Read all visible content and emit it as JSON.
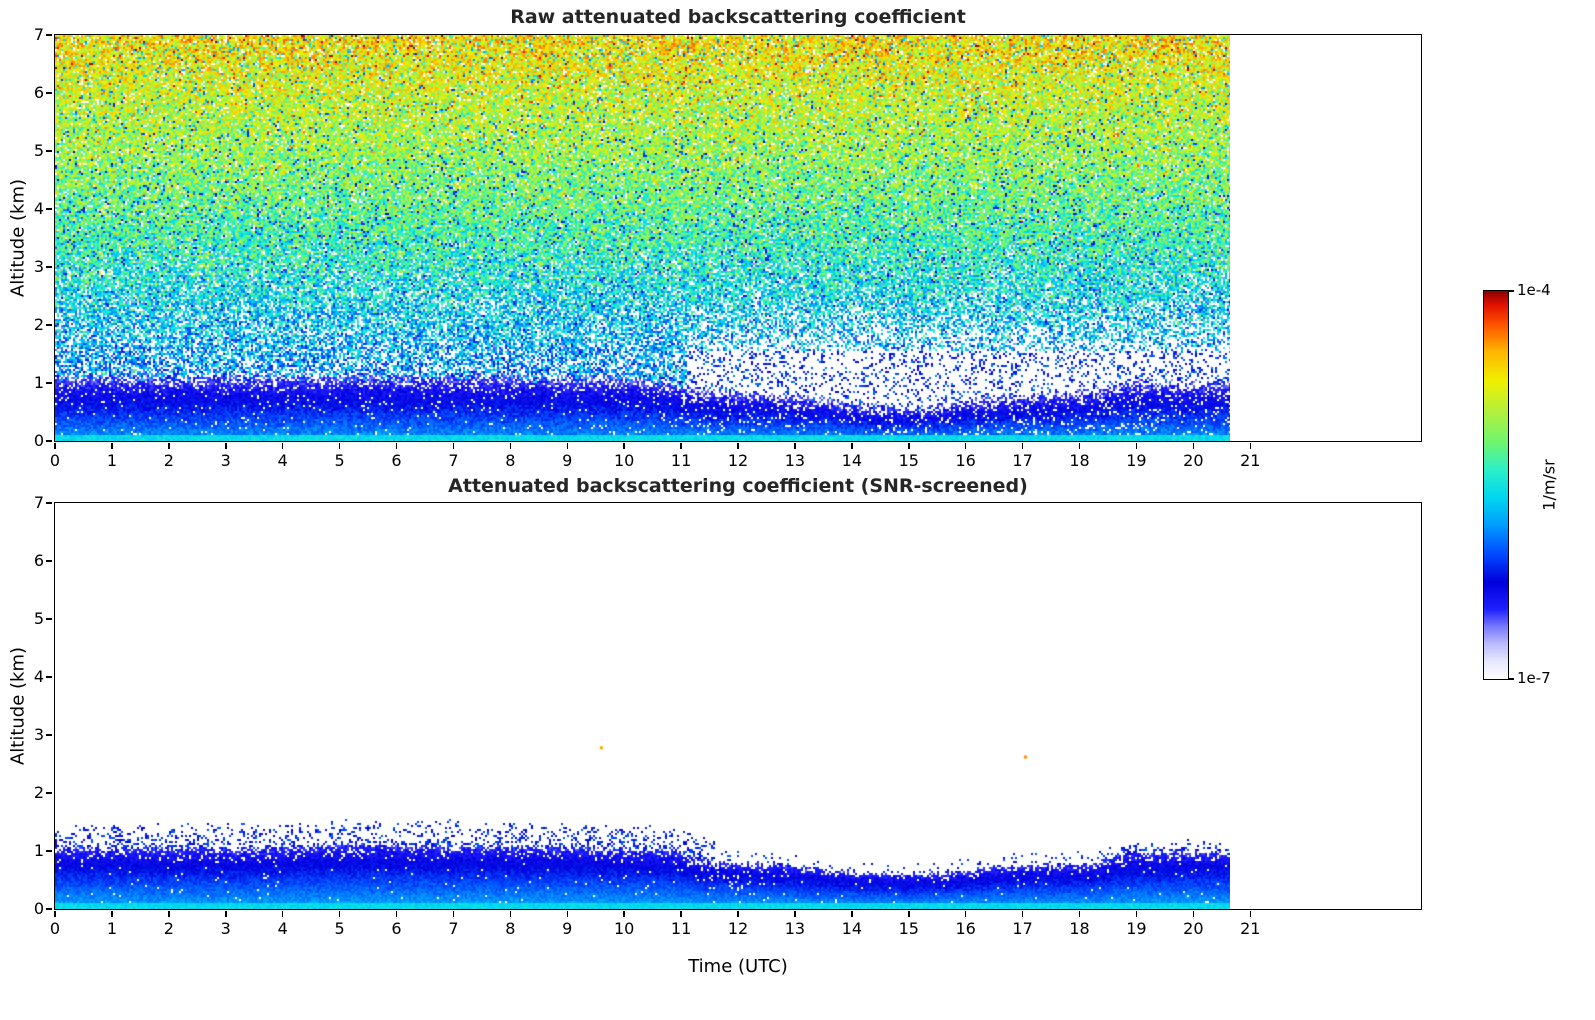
{
  "colorbar": {
    "label": "1/m/sr",
    "max_label": "1e-4",
    "min_label": "1e-7",
    "stops": [
      [
        0.0,
        "#ffffff"
      ],
      [
        0.045,
        "#e8e8ff"
      ],
      [
        0.09,
        "#bcbcff"
      ],
      [
        0.135,
        "#7878ff"
      ],
      [
        0.18,
        "#2020ff"
      ],
      [
        0.25,
        "#0000dc"
      ],
      [
        0.32,
        "#0048ff"
      ],
      [
        0.4,
        "#00a0ff"
      ],
      [
        0.47,
        "#00d8f0"
      ],
      [
        0.54,
        "#2cf0c8"
      ],
      [
        0.61,
        "#6ef66e"
      ],
      [
        0.69,
        "#b4f03c"
      ],
      [
        0.77,
        "#f0f000"
      ],
      [
        0.845,
        "#ffb400"
      ],
      [
        0.915,
        "#ff5000"
      ],
      [
        0.965,
        "#e01000"
      ],
      [
        1.0,
        "#8c0000"
      ]
    ]
  },
  "chart_data": [
    {
      "type": "heatmap",
      "variant": "raw",
      "title": "Raw attenuated backscattering coefficient",
      "xlabel": "",
      "ylabel": "Altitude (km)",
      "xlim": [
        0,
        24
      ],
      "ylim": [
        0,
        7
      ],
      "xticks": [
        0,
        1,
        2,
        3,
        4,
        5,
        6,
        7,
        8,
        9,
        10,
        11,
        12,
        13,
        14,
        15,
        16,
        17,
        18,
        19,
        20,
        21
      ],
      "yticks": [
        0,
        1,
        2,
        3,
        4,
        5,
        6,
        7
      ],
      "time_range_utc": [
        0,
        20.65
      ],
      "colorbar_range": [
        "1e-7",
        "1e-4"
      ],
      "units": "1/m/sr",
      "aerosol_layer_top_km": [
        [
          0,
          1.1
        ],
        [
          3,
          1.08
        ],
        [
          5,
          1.12
        ],
        [
          9,
          1.08
        ],
        [
          10.6,
          1.05
        ],
        [
          11.3,
          0.85
        ],
        [
          12.5,
          0.8
        ],
        [
          13.5,
          0.72
        ],
        [
          14.2,
          0.6
        ],
        [
          15.3,
          0.56
        ],
        [
          16.2,
          0.72
        ],
        [
          17.2,
          0.78
        ],
        [
          18.3,
          0.85
        ],
        [
          18.8,
          1.0
        ],
        [
          20.65,
          1.0
        ]
      ],
      "noise_profile": [
        [
          0.8,
          0.36
        ],
        [
          1.5,
          0.4
        ],
        [
          2.5,
          0.48
        ],
        [
          3.5,
          0.56
        ],
        [
          5,
          0.66
        ],
        [
          6,
          0.72
        ],
        [
          7,
          0.79
        ]
      ],
      "seed": 1337
    },
    {
      "type": "heatmap",
      "variant": "snr_screened",
      "title": "Attenuated backscattering coefficient (SNR-screened)",
      "xlabel": "Time (UTC)",
      "ylabel": "Altitude (km)",
      "xlim": [
        0,
        24
      ],
      "ylim": [
        0,
        7
      ],
      "xticks": [
        0,
        1,
        2,
        3,
        4,
        5,
        6,
        7,
        8,
        9,
        10,
        11,
        12,
        13,
        14,
        15,
        16,
        17,
        18,
        19,
        20,
        21
      ],
      "yticks": [
        0,
        1,
        2,
        3,
        4,
        5,
        6,
        7
      ],
      "time_range_utc": [
        0,
        20.65
      ],
      "colorbar_range": [
        "1e-7",
        "1e-4"
      ],
      "units": "1/m/sr",
      "aerosol_layer_top_km": [
        [
          0,
          1.05
        ],
        [
          3,
          1.02
        ],
        [
          5.3,
          1.1
        ],
        [
          9,
          1.05
        ],
        [
          10.8,
          1.0
        ],
        [
          11.4,
          0.82
        ],
        [
          12.3,
          0.78
        ],
        [
          13.2,
          0.7
        ],
        [
          14,
          0.62
        ],
        [
          15,
          0.58
        ],
        [
          15.7,
          0.62
        ],
        [
          16.5,
          0.7
        ],
        [
          17.3,
          0.75
        ],
        [
          18.3,
          0.78
        ],
        [
          18.8,
          0.95
        ],
        [
          20.65,
          0.97
        ]
      ],
      "specks": [
        {
          "t": 9.6,
          "z": 2.78,
          "color": "#ffa500"
        },
        {
          "t": 17.05,
          "z": 2.62,
          "color": "#ff8c00"
        }
      ],
      "seed": 4242
    }
  ]
}
